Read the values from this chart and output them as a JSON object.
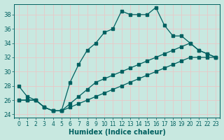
{
  "xlabel": "Humidex (Indice chaleur)",
  "background_color": "#c8e8e0",
  "grid_color": "#e8c8c8",
  "line_color": "#006060",
  "line1_y": [
    28,
    26.5,
    26,
    25,
    24.5,
    24.5,
    28.5,
    31,
    33,
    34,
    35.5,
    36,
    38.5,
    38,
    38,
    38,
    39,
    36.5,
    35,
    35,
    34,
    33,
    32.5,
    32
  ],
  "line2_y": [
    26,
    26,
    26,
    25,
    24.5,
    24.5,
    25,
    25.5,
    26,
    26.5,
    27,
    27.5,
    28,
    28.5,
    29,
    29.5,
    30,
    30.5,
    31,
    31.5,
    32,
    32,
    32,
    32
  ],
  "line3_y": [
    26,
    26,
    26,
    25,
    24.5,
    24.5,
    25.5,
    26.5,
    27.5,
    28.5,
    29,
    29.5,
    30,
    30.5,
    31,
    31.5,
    32,
    32.5,
    33,
    33.5,
    34,
    33,
    32.5,
    32
  ],
  "x": [
    0,
    1,
    2,
    3,
    4,
    5,
    6,
    7,
    8,
    9,
    10,
    11,
    12,
    13,
    14,
    15,
    16,
    17,
    18,
    19,
    20,
    21,
    22,
    23
  ],
  "ylim": [
    23.5,
    39.5
  ],
  "xlim": [
    -0.5,
    23.5
  ],
  "yticks": [
    24,
    26,
    28,
    30,
    32,
    34,
    36,
    38
  ],
  "xticks": [
    0,
    1,
    2,
    3,
    4,
    5,
    6,
    7,
    8,
    9,
    10,
    11,
    12,
    13,
    14,
    15,
    16,
    17,
    18,
    19,
    20,
    21,
    22,
    23
  ],
  "tick_fontsize": 5.5,
  "xlabel_fontsize": 7
}
